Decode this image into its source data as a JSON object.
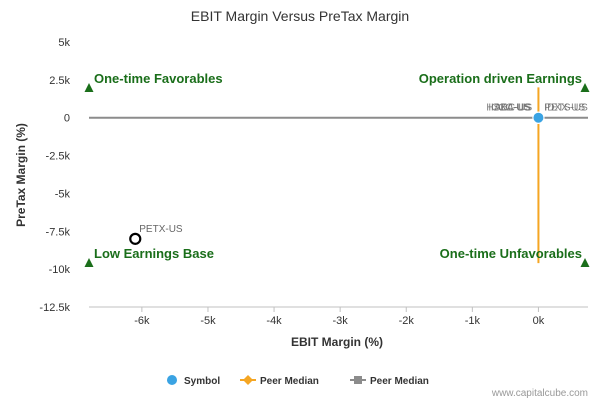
{
  "chart_data": {
    "type": "scatter",
    "title": "EBIT Margin Versus PreTax Margin",
    "xlabel": "EBIT Margin (%)",
    "ylabel": "PreTax Margin (%)",
    "xlim": [
      -6800,
      750
    ],
    "ylim": [
      -12500,
      5000
    ],
    "x_ticks": [
      {
        "value": -6000,
        "label": "-6k"
      },
      {
        "value": -5000,
        "label": "-5k"
      },
      {
        "value": -4000,
        "label": "-4k"
      },
      {
        "value": -3000,
        "label": "-3k"
      },
      {
        "value": -2000,
        "label": "-2k"
      },
      {
        "value": -1000,
        "label": "-1k"
      },
      {
        "value": 0,
        "label": "0k"
      }
    ],
    "y_ticks": [
      {
        "value": 5000,
        "label": "5k"
      },
      {
        "value": 2500,
        "label": "2.5k"
      },
      {
        "value": 0,
        "label": "0"
      },
      {
        "value": -2500,
        "label": "-2.5k"
      },
      {
        "value": -5000,
        "label": "-5k"
      },
      {
        "value": -7500,
        "label": "-7.5k"
      },
      {
        "value": -10000,
        "label": "-10k"
      },
      {
        "value": -12500,
        "label": "-12.5k"
      }
    ],
    "quadrant_labels": [
      {
        "text": "One-time Favorables",
        "corner": "top-left"
      },
      {
        "text": "Operation driven Earnings",
        "corner": "top-right"
      },
      {
        "text": "Low Earnings Base",
        "corner": "bottom-left"
      },
      {
        "text": "One-time Unfavorables",
        "corner": "bottom-right"
      }
    ],
    "points": [
      {
        "label": "PETX-US",
        "x": -6100,
        "y": -8000,
        "style": "highlight"
      },
      {
        "label": "HSKA-US",
        "x": 0,
        "y": 0,
        "style": "symbol"
      },
      {
        "label": "ICCC-US",
        "x": 0,
        "y": 0,
        "style": "symbol"
      },
      {
        "label": "ABC-US",
        "x": 0,
        "y": 0,
        "style": "symbol"
      },
      {
        "label": "PETS-US",
        "x": 0,
        "y": 0,
        "style": "symbol"
      },
      {
        "label": "IDXX-US",
        "x": 0,
        "y": 0,
        "style": "symbol"
      }
    ],
    "peer_median_x": 0,
    "peer_median_y": 0,
    "legend": {
      "placement": "bottom",
      "items": [
        {
          "name": "Symbol",
          "color": "#3aa3e3",
          "marker": "circle"
        },
        {
          "name": "Peer Median",
          "color": "#f5a623",
          "marker": "diamond-line"
        },
        {
          "name": "Peer Median",
          "color": "#8c8c8c",
          "marker": "square-line"
        }
      ]
    },
    "credit": "www.capitalcube.com",
    "colors": {
      "quadrant_label": "#1a6e1a",
      "marker_triangle": "#1a6e1a",
      "peer_median_x_line": "#f5a623",
      "peer_median_y_line": "#8c8c8c",
      "symbol_point": "#3aa3e3"
    }
  }
}
